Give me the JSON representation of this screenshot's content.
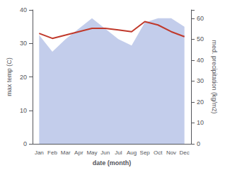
{
  "chart_data": {
    "type": "line",
    "categories": [
      "Jan",
      "Feb",
      "Mar",
      "Apr",
      "May",
      "Jun",
      "Jul",
      "Aug",
      "Sep",
      "Oct",
      "Nov",
      "Dec"
    ],
    "xlabel": "date (month)",
    "ylabel": "max temp (C)",
    "y2label": "med. precipitation (kg/m2)",
    "series": [
      {
        "type": "area",
        "axis": "y2",
        "color": "#b8c4e8",
        "values": [
          52,
          44,
          50,
          55,
          60,
          55,
          50,
          47,
          58,
          60,
          60,
          56
        ]
      },
      {
        "type": "line",
        "color": "#c0392b",
        "values": [
          33.0,
          31.5,
          32.5,
          33.5,
          34.5,
          34.5,
          34.0,
          33.5,
          36.5,
          35.5,
          33.5,
          32.0
        ]
      }
    ],
    "ylim": [
      0,
      40
    ],
    "yticks": [
      0,
      10,
      20,
      30,
      40
    ],
    "y2lim": [
      0,
      64
    ],
    "y2ticks": [
      0,
      10,
      20,
      30,
      40,
      50,
      60
    ],
    "grid": false
  }
}
